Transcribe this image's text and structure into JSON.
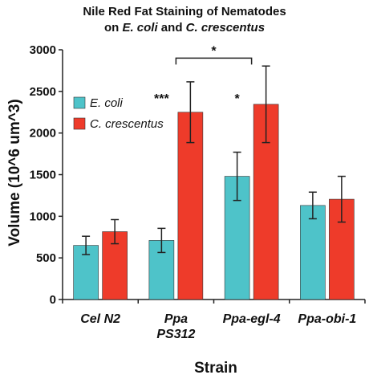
{
  "chart_data": {
    "type": "bar",
    "title_parts": [
      [
        {
          "text": "Nile Red Fat Staining of Nematodes",
          "italic": false
        }
      ],
      [
        {
          "text": "on ",
          "italic": false
        },
        {
          "text": "E. coli",
          "italic": true
        },
        {
          "text": " and ",
          "italic": false
        },
        {
          "text": "C. crescentus",
          "italic": true
        }
      ]
    ],
    "xlabel": "Strain",
    "ylabel": "Volume (10^6 um^3)",
    "ylim": [
      0,
      3000
    ],
    "yticks": [
      0,
      500,
      1000,
      1500,
      2000,
      2500,
      3000
    ],
    "y_tick_labels": [
      "0",
      "500",
      "1000",
      "1500",
      "2000",
      "2500",
      "3000"
    ],
    "categories": [
      {
        "lines": [
          "Cel N2"
        ]
      },
      {
        "lines": [
          "Ppa",
          "PS312"
        ]
      },
      {
        "lines": [
          "Ppa-egl-4"
        ]
      },
      {
        "lines": [
          "Ppa-obi-1"
        ]
      }
    ],
    "series": [
      {
        "name": "E. coli",
        "color": "#4ec3c9",
        "values": [
          650,
          710,
          1480,
          1130
        ],
        "errors": [
          110,
          145,
          290,
          160
        ]
      },
      {
        "name": "C. crescentus",
        "color": "#ee3b2a",
        "values": [
          815,
          2250,
          2345,
          1205
        ],
        "errors": [
          145,
          365,
          460,
          275
        ]
      }
    ],
    "annotations": [
      {
        "text": "***",
        "category": 1,
        "series": 0
      },
      {
        "text": "*",
        "category": 2,
        "series": 0
      },
      {
        "text": "*",
        "bracket_from": 1,
        "bracket_to": 2,
        "y": 2900
      }
    ],
    "legend": {
      "position": "top-left"
    },
    "grid": false
  }
}
